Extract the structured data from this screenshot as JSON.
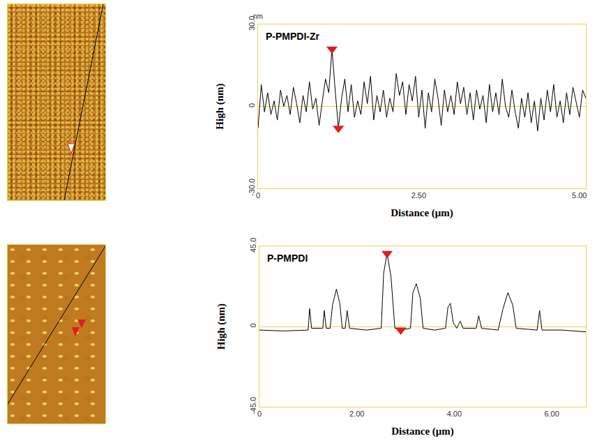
{
  "chart_data": [
    {
      "type": "line",
      "title": "P-PMPDI-Zr",
      "unit_label": "nm",
      "xlabel": "Distance (μm)",
      "ylabel": "High (nm)",
      "color": "#000000",
      "x": [
        0,
        0.05,
        0.1,
        0.15,
        0.2,
        0.25,
        0.3,
        0.35,
        0.4,
        0.45,
        0.5,
        0.55,
        0.6,
        0.65,
        0.7,
        0.75,
        0.8,
        0.85,
        0.9,
        0.95,
        1.0,
        1.05,
        1.1,
        1.15,
        1.2,
        1.25,
        1.3,
        1.35,
        1.4,
        1.45,
        1.5,
        1.55,
        1.6,
        1.65,
        1.7,
        1.75,
        1.8,
        1.85,
        1.9,
        1.95,
        2.0,
        2.05,
        2.1,
        2.15,
        2.2,
        2.25,
        2.3,
        2.35,
        2.4,
        2.45,
        2.5,
        2.55,
        2.6,
        2.65,
        2.7,
        2.75,
        2.8,
        2.85,
        2.9,
        2.95,
        3.0,
        3.05,
        3.1,
        3.15,
        3.2,
        3.25,
        3.3,
        3.35,
        3.4,
        3.45,
        3.5,
        3.55,
        3.6,
        3.65,
        3.7,
        3.75,
        3.8,
        3.85,
        3.9,
        3.95,
        4.0,
        4.05,
        4.1,
        4.15,
        4.2,
        4.25,
        4.3,
        4.35,
        4.4,
        4.45,
        4.5,
        4.55,
        4.6,
        4.65,
        4.7,
        4.75,
        4.8,
        4.85,
        4.9,
        4.95,
        5.0,
        5.05,
        5.1
      ],
      "values": [
        -8,
        8,
        -2,
        5,
        -3,
        2,
        -5,
        6,
        0,
        4,
        -3,
        7,
        1,
        -6,
        4,
        -2,
        9,
        -1,
        3,
        -7,
        2,
        10,
        5,
        21,
        6,
        -8,
        3,
        10,
        -2,
        8,
        -4,
        2,
        -3,
        9,
        1,
        11,
        -5,
        4,
        -2,
        6,
        -4,
        3,
        -2,
        12,
        4,
        9,
        -3,
        8,
        2,
        11,
        -4,
        6,
        -8,
        5,
        -2,
        10,
        3,
        -7,
        6,
        -2,
        4,
        -3,
        9,
        1,
        7,
        -3,
        5,
        -5,
        6,
        -1,
        4,
        -6,
        8,
        -2,
        5,
        -3,
        10,
        0,
        -4,
        6,
        -2,
        -8,
        3,
        -4,
        5,
        -6,
        2,
        -9,
        3,
        -5,
        6,
        -2,
        8,
        -4,
        2,
        -6,
        5,
        -3,
        7,
        1,
        -4,
        6,
        3
      ],
      "cursors": {
        "x": [
          1.15,
          1.25
        ],
        "y": [
          21,
          -8
        ],
        "color": "#e31a1c",
        "marker": "triangle-down"
      },
      "xlim": [
        0,
        5.1
      ],
      "ylim": [
        -30,
        30
      ],
      "xticks": [
        0,
        {
          "value": 2.5,
          "label": "2.50"
        },
        {
          "value": 5,
          "label": "5.00"
        }
      ],
      "yticks": [
        {
          "value": -30,
          "label": "-30.0"
        },
        0,
        {
          "value": 30,
          "label": "30.0"
        }
      ],
      "grid": false
    },
    {
      "type": "line",
      "title": "P-PMPDI",
      "xlabel": "Distance (μm)",
      "ylabel": "High (nm)",
      "color": "#000000",
      "x": [
        0,
        0.5,
        1.0,
        1.03,
        1.07,
        1.3,
        1.33,
        1.37,
        1.45,
        1.5,
        1.58,
        1.65,
        1.7,
        1.76,
        1.8,
        1.85,
        2.2,
        2.5,
        2.55,
        2.62,
        2.7,
        2.78,
        2.9,
        3.1,
        3.15,
        3.22,
        3.3,
        3.36,
        3.6,
        3.82,
        3.87,
        3.92,
        3.98,
        4.05,
        4.12,
        4.18,
        4.45,
        4.5,
        4.56,
        4.9,
        5.0,
        5.1,
        5.2,
        5.27,
        5.7,
        5.75,
        5.8,
        6.2,
        6.7
      ],
      "values": [
        -2,
        -2.5,
        -2,
        10,
        -1,
        -1,
        9,
        -1,
        -1,
        12,
        21,
        13,
        -1,
        -1,
        9,
        -1,
        -2,
        -1,
        30,
        41,
        28,
        -1,
        -2,
        -1,
        19,
        24,
        16,
        -1,
        -2,
        -1,
        11,
        13,
        2,
        -1,
        3,
        -1,
        -1,
        6,
        -1,
        -2,
        10,
        19,
        12,
        -1,
        -2,
        9,
        -2,
        -2,
        -3
      ],
      "cursors": {
        "x": [
          2.62,
          2.9
        ],
        "y": [
          41,
          -2
        ],
        "color": "#e31a1c",
        "marker": "triangle-down"
      },
      "xlim": [
        0,
        6.7
      ],
      "ylim": [
        -45,
        45
      ],
      "xticks": [
        0,
        {
          "value": 2,
          "label": "2.00"
        },
        {
          "value": 4,
          "label": "4.00"
        },
        {
          "value": 6,
          "label": "6.00"
        }
      ],
      "yticks": [
        {
          "value": -45,
          "label": "-45.0"
        },
        0,
        {
          "value": 45,
          "label": "45.0"
        }
      ],
      "grid": false
    }
  ]
}
